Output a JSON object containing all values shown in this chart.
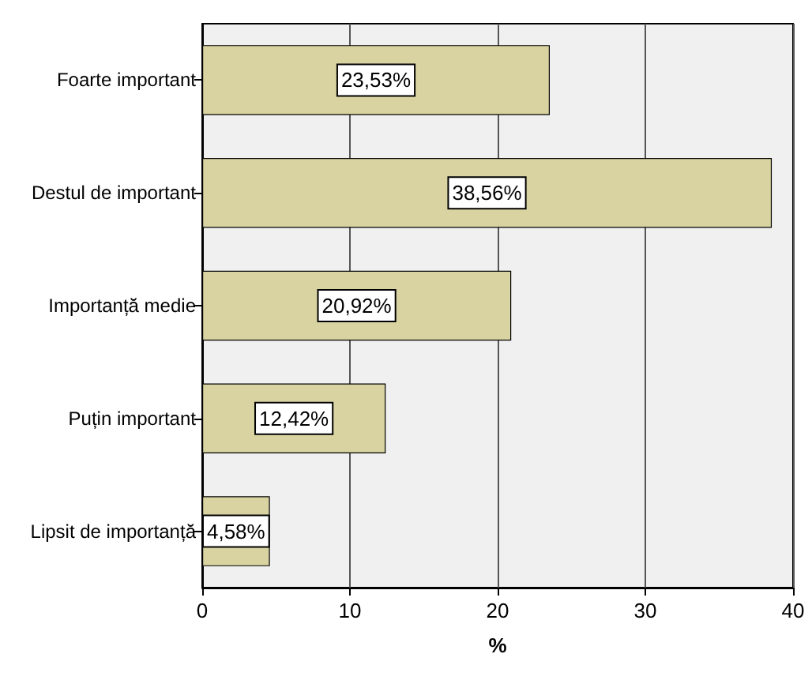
{
  "chart_data": {
    "type": "bar",
    "orientation": "horizontal",
    "xlabel": "%",
    "categories": [
      "Foarte important",
      "Destul de important",
      "Importanță medie",
      "Puțin important",
      "Lipsit de importanță"
    ],
    "values": [
      23.53,
      38.56,
      20.92,
      12.42,
      4.58
    ],
    "value_labels": [
      "23,53%",
      "38,56%",
      "20,92%",
      "12,42%",
      "4,58%"
    ],
    "color": "#d8d3a0",
    "xlim": [
      0,
      40
    ],
    "xticks": [
      0,
      10,
      20,
      30,
      40
    ],
    "grid": "x"
  }
}
